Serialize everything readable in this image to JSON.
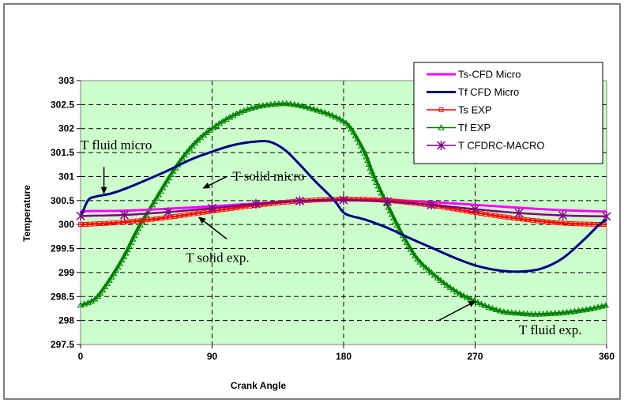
{
  "chart_data": {
    "type": "line",
    "xlabel": "Crank Angle",
    "ylabel": "Temperature",
    "xlim": [
      0,
      360
    ],
    "ylim": [
      297.5,
      303
    ],
    "xticks": [
      0,
      90,
      180,
      270,
      360
    ],
    "yticks": [
      297.5,
      298,
      298.5,
      299,
      299.5,
      300,
      300.5,
      301,
      301.5,
      302,
      302.5,
      303
    ],
    "ytick_labels": [
      "297.5",
      "298",
      "298.5",
      "299",
      "299.5",
      "300",
      "300.5",
      "301",
      "301.5",
      "302",
      "302.5",
      "303"
    ],
    "grid": true,
    "plot_background": "#ccffcc",
    "legend_position": "top-right",
    "series": [
      {
        "name": "Ts-CFD Micro",
        "color": "#ff00ff",
        "marker": "none",
        "x": [
          0,
          30,
          60,
          90,
          120,
          150,
          180,
          210,
          240,
          270,
          300,
          330,
          360
        ],
        "y": [
          300.28,
          300.29,
          300.33,
          300.38,
          300.44,
          300.49,
          300.52,
          300.51,
          300.47,
          300.41,
          300.35,
          300.3,
          300.27
        ]
      },
      {
        "name": "Tf CFD Micro",
        "color": "#000080",
        "marker": "none",
        "x": [
          0,
          5,
          10,
          20,
          30,
          45,
          60,
          75,
          90,
          105,
          120,
          130,
          140,
          150,
          160,
          170,
          175,
          180,
          185,
          195,
          210,
          225,
          240,
          255,
          270,
          285,
          300,
          315,
          330,
          345,
          355,
          360
        ],
        "y": [
          300.15,
          300.5,
          300.58,
          300.64,
          300.74,
          300.93,
          301.13,
          301.35,
          301.52,
          301.66,
          301.73,
          301.72,
          301.55,
          301.25,
          300.92,
          300.62,
          300.45,
          300.25,
          300.18,
          300.1,
          299.93,
          299.72,
          299.52,
          299.32,
          299.15,
          299.05,
          299.02,
          299.08,
          299.3,
          299.7,
          300,
          300.1
        ]
      },
      {
        "name": "Ts EXP",
        "color": "#ff0000",
        "marker": "square",
        "x": [
          0,
          30,
          60,
          90,
          120,
          150,
          180,
          210,
          240,
          270,
          300,
          330,
          360
        ],
        "y": [
          300,
          300.05,
          300.15,
          300.28,
          300.4,
          300.49,
          300.53,
          300.5,
          300.4,
          300.25,
          300.12,
          300.03,
          300
        ]
      },
      {
        "name": "Tf EXP",
        "color": "#008000",
        "marker": "triangle",
        "x": [
          0,
          10,
          20,
          30,
          40,
          50,
          60,
          70,
          80,
          90,
          100,
          110,
          120,
          130,
          140,
          150,
          160,
          170,
          180,
          185,
          190,
          195,
          200,
          210,
          220,
          230,
          240,
          250,
          260,
          270,
          280,
          290,
          300,
          310,
          320,
          330,
          340,
          350,
          360
        ],
        "y": [
          298.32,
          298.45,
          298.85,
          299.35,
          299.95,
          300.45,
          300.95,
          301.4,
          301.75,
          302.0,
          302.2,
          302.35,
          302.45,
          302.5,
          302.52,
          302.48,
          302.4,
          302.3,
          302.15,
          302.0,
          301.75,
          301.45,
          301.05,
          300.4,
          299.8,
          299.3,
          299.0,
          298.75,
          298.55,
          298.4,
          298.27,
          298.18,
          298.15,
          298.13,
          298.14,
          298.16,
          298.2,
          298.25,
          298.32
        ]
      },
      {
        "name": "T CFDRC-MACRO",
        "color": "#800080",
        "marker": "star",
        "x": [
          0,
          30,
          60,
          90,
          120,
          150,
          180,
          210,
          240,
          270,
          300,
          330,
          360
        ],
        "y": [
          300.18,
          300.2,
          300.26,
          300.34,
          300.43,
          300.49,
          300.51,
          300.48,
          300.41,
          300.32,
          300.24,
          300.19,
          300.17
        ]
      }
    ],
    "annotations": [
      {
        "text": "T fluid micro",
        "label_x": 0,
        "label_y": 301.65,
        "arrow_from": [
          16,
          301.2
        ],
        "arrow_to": [
          16,
          300.65
        ]
      },
      {
        "text": "T solid micro",
        "label_x": 104,
        "label_y": 301.0,
        "arrow_from": [
          100,
          301.0
        ],
        "arrow_to": [
          84,
          300.76
        ]
      },
      {
        "text": "T solid exp.",
        "label_x": 72,
        "label_y": 299.3,
        "arrow_from": [
          100,
          299.7
        ],
        "arrow_to": [
          81,
          300.15
        ]
      },
      {
        "text": "T fluid exp.",
        "label_x": 300,
        "label_y": 297.8,
        "arrow_from": [
          245,
          298.0
        ],
        "arrow_to": [
          270,
          298.4
        ]
      }
    ]
  }
}
